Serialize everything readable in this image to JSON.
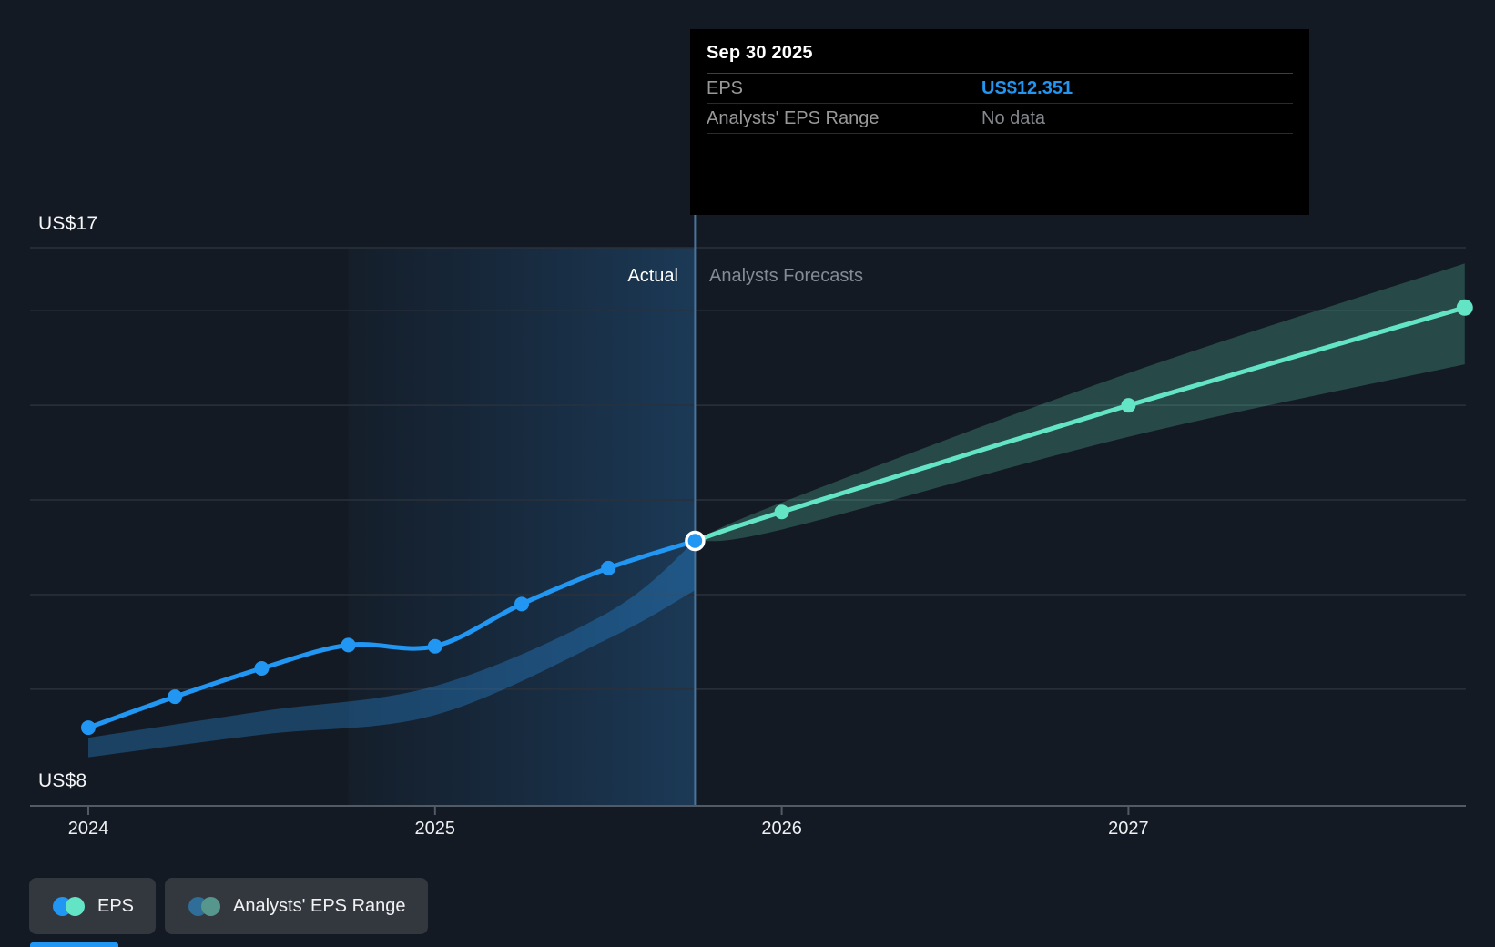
{
  "tooltip": {
    "title": "Sep 30 2025",
    "rows": [
      {
        "label": "EPS",
        "value": "US$12.351"
      },
      {
        "label": "Analysts' EPS Range",
        "value": "No data"
      }
    ]
  },
  "labels": {
    "actual": "Actual",
    "forecast": "Analysts Forecasts",
    "y_top": "US$17",
    "y_bottom": "US$8"
  },
  "x_axis": {
    "ticks": [
      {
        "label": "2024",
        "year": 2024
      },
      {
        "label": "2025",
        "year": 2025
      },
      {
        "label": "2026",
        "year": 2026
      },
      {
        "label": "2027",
        "year": 2027
      }
    ]
  },
  "legend": [
    {
      "label": "EPS",
      "colors": [
        "#2196f3",
        "#63e5c5"
      ]
    },
    {
      "label": "Analysts' EPS Range",
      "colors": [
        "#2e6e99",
        "#56968c"
      ]
    }
  ],
  "colors": {
    "background": "#141a23",
    "eps_line": "#2196f3",
    "forecast_line": "#63e5c5",
    "past_range_fill": "rgba(45,150,235,0.32)",
    "forecast_range_fill": "rgba(99,229,197,0.24)",
    "highlight_left": "rgba(33,110,180,0.05)",
    "highlight_right": "rgba(45,130,205,0.30)",
    "divider": "#49759c",
    "grid": "#2a313b",
    "axis": "#525a66",
    "selected_ring": "#ffffff"
  },
  "chart_data": {
    "type": "line",
    "title": "EPS actual vs analysts forecast",
    "ylabel_top": "US$17",
    "ylabel_bottom": "US$8",
    "ylim": [
      8,
      17
    ],
    "y_gridline_values": [
      17,
      16,
      14.5,
      13,
      11.5,
      10
    ],
    "xlim": [
      2023.83,
      2027.97
    ],
    "divider_year": 2025.75,
    "divider_date": "Sep 30 2025",
    "highlight_start_year": 2024.75,
    "selected_point": {
      "year": 2025.75,
      "value": 12.351,
      "label": "US$12.351"
    },
    "series": [
      {
        "name": "EPS",
        "color": "#2196f3",
        "x": [
          2024.0,
          2024.25,
          2024.5,
          2024.75,
          2025.0,
          2025.25,
          2025.5,
          2025.75
        ],
        "values": [
          9.39,
          9.88,
          10.33,
          10.7,
          10.68,
          11.35,
          11.92,
          12.351
        ]
      },
      {
        "name": "EPS forecast",
        "color": "#63e5c5",
        "x": [
          2025.75,
          2026.0,
          2027.0,
          2027.97
        ],
        "values": [
          12.351,
          12.81,
          14.5,
          16.05
        ]
      }
    ],
    "past_range": {
      "x": [
        2024.0,
        2024.5,
        2025.0,
        2025.5,
        2025.75
      ],
      "top": [
        9.23,
        9.65,
        10.05,
        11.22,
        12.35
      ],
      "bottom": [
        8.92,
        9.28,
        9.59,
        10.8,
        11.57
      ]
    },
    "forecast_range": {
      "x": [
        2025.75,
        2026.0,
        2027.0,
        2027.97
      ],
      "top": [
        12.35,
        12.96,
        15.01,
        16.75
      ],
      "bottom": [
        12.35,
        12.53,
        14.0,
        15.15
      ]
    },
    "legend_entries": [
      "EPS",
      "Analysts' EPS Range"
    ],
    "grid": "horizontal-only",
    "legend_position": "bottom-left"
  }
}
